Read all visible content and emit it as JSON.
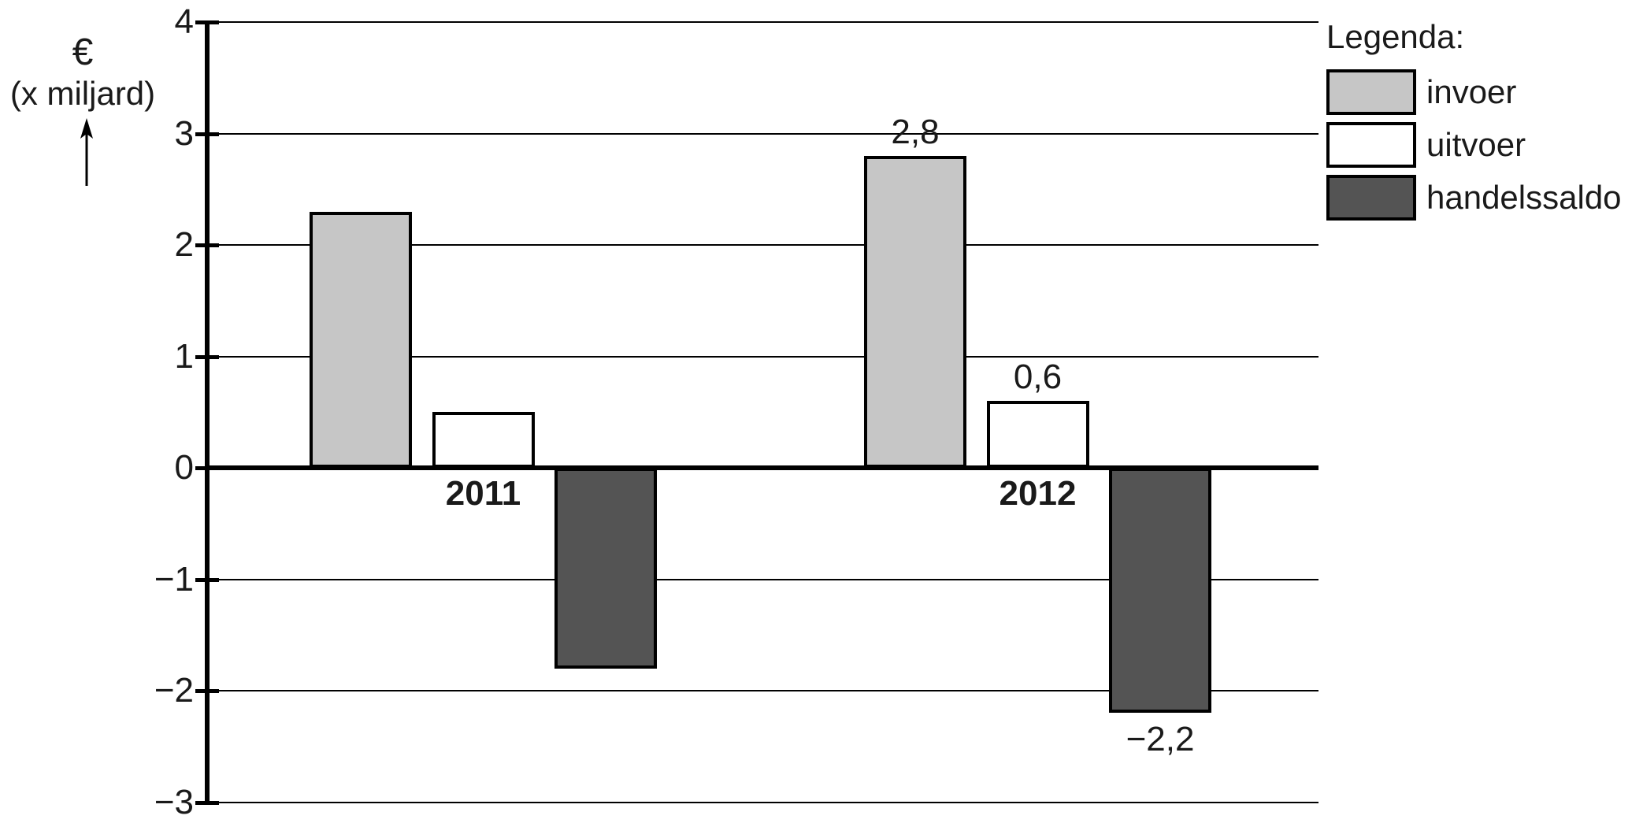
{
  "figure": {
    "background": "#ffffff"
  },
  "axis": {
    "unit_symbol": "€",
    "unit_text": "(x miljard)"
  },
  "legend": {
    "title": "Legenda:",
    "items": [
      {
        "label": "invoer",
        "color": "#c6c6c6"
      },
      {
        "label": "uitvoer",
        "color": "#ffffff"
      },
      {
        "label": "handelssaldo",
        "color": "#545454"
      }
    ]
  },
  "chart_data": {
    "type": "bar",
    "title": "",
    "xlabel": "",
    "ylabel": "€ (x miljard)",
    "categories": [
      "2011",
      "2012"
    ],
    "series": [
      {
        "name": "invoer",
        "color": "#c6c6c6",
        "values": [
          2.3,
          2.8
        ]
      },
      {
        "name": "uitvoer",
        "color": "#ffffff",
        "values": [
          0.5,
          0.6
        ]
      },
      {
        "name": "handelssaldo",
        "color": "#545454",
        "values": [
          -1.8,
          -2.2
        ]
      }
    ],
    "bar_value_labels": [
      [
        null,
        "2,8"
      ],
      [
        null,
        "0,6"
      ],
      [
        null,
        "−2,2"
      ]
    ],
    "ylim": [
      -3,
      4
    ],
    "yticks": [
      4,
      3,
      2,
      1,
      0,
      -1,
      -2,
      -3
    ],
    "ytick_labels": [
      "4",
      "3",
      "2",
      "1",
      "0",
      "−1",
      "−2",
      "−3"
    ],
    "grid": true,
    "legend_position": "top-right",
    "line_color": "#000000",
    "text_color": "#1a1a1a"
  }
}
